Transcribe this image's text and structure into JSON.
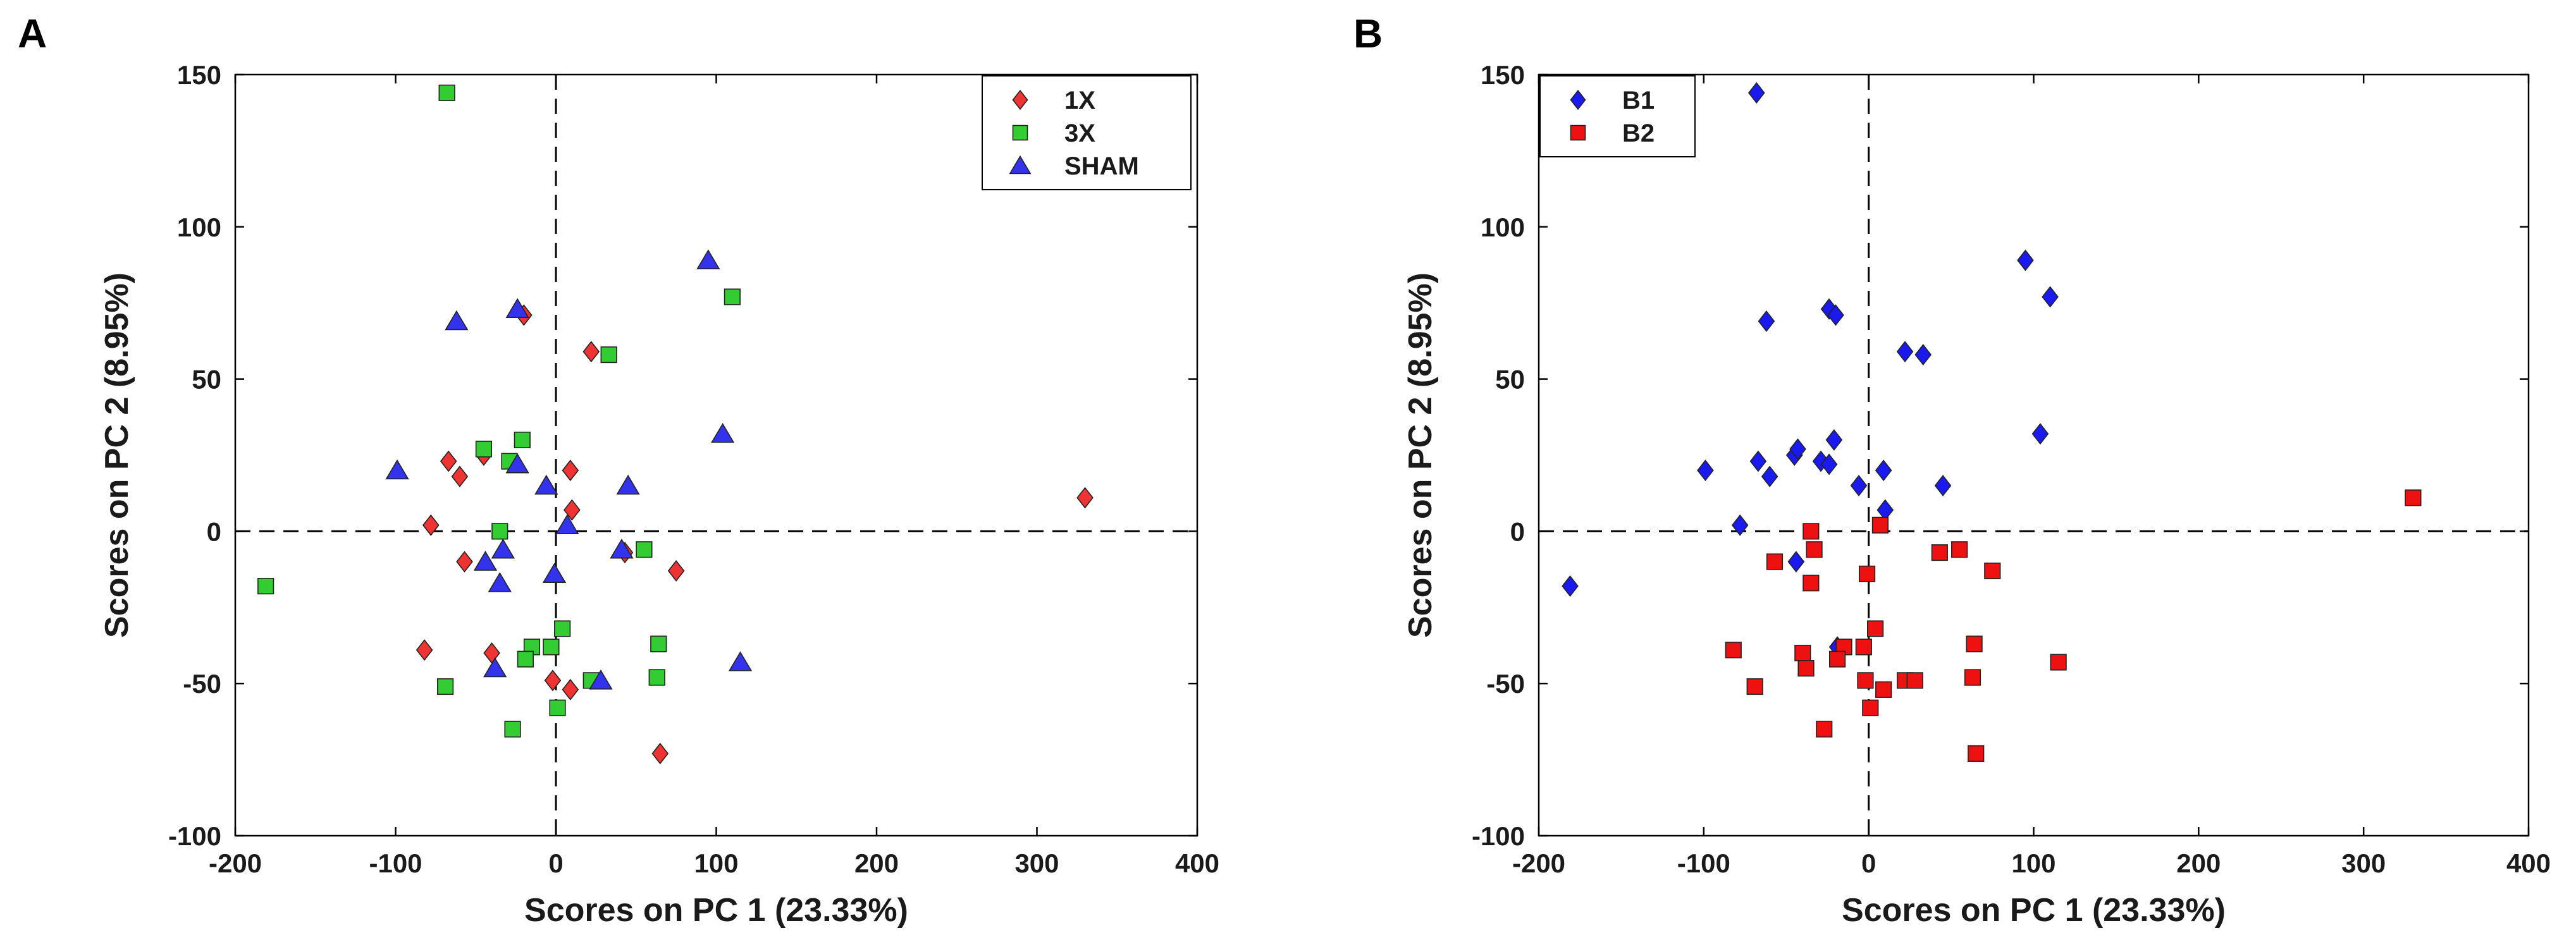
{
  "chart_data": [
    {
      "panel_label": "A",
      "type": "scatter",
      "xlabel": "Scores on PC 1 (23.33%)",
      "ylabel": "Scores on PC 2 (8.95%)",
      "xlim": [
        -200,
        400
      ],
      "ylim": [
        -100,
        150
      ],
      "xticks": [
        -200,
        -100,
        0,
        100,
        200,
        300,
        400
      ],
      "yticks": [
        -100,
        -50,
        0,
        50,
        100,
        150
      ],
      "grid": false,
      "reference_lines": {
        "x": 0,
        "y": 0,
        "style": "dashed"
      },
      "legend_position": "top-right",
      "series": [
        {
          "name": "1X",
          "marker": "diamond",
          "color": "#ee3333",
          "points": [
            [
              -20,
              71
            ],
            [
              22,
              59
            ],
            [
              -67,
              23
            ],
            [
              -60,
              18
            ],
            [
              -45,
              25
            ],
            [
              9,
              20
            ],
            [
              10,
              7
            ],
            [
              -78,
              2
            ],
            [
              -57,
              -10
            ],
            [
              43,
              -7
            ],
            [
              75,
              -13
            ],
            [
              -40,
              -40
            ],
            [
              -82,
              -39
            ],
            [
              -2,
              -49
            ],
            [
              9,
              -52
            ],
            [
              65,
              -73
            ],
            [
              330,
              11
            ]
          ]
        },
        {
          "name": "3X",
          "marker": "square",
          "color": "#33cc33",
          "points": [
            [
              -68,
              144
            ],
            [
              110,
              77
            ],
            [
              33,
              58
            ],
            [
              -45,
              27
            ],
            [
              -21,
              30
            ],
            [
              -29,
              23
            ],
            [
              -35,
              0
            ],
            [
              55,
              -6
            ],
            [
              -181,
              -18
            ],
            [
              64,
              -37
            ],
            [
              4,
              -32
            ],
            [
              -15,
              -38
            ],
            [
              -19,
              -42
            ],
            [
              -3,
              -38
            ],
            [
              22,
              -49
            ],
            [
              -69,
              -51
            ],
            [
              63,
              -48
            ],
            [
              1,
              -58
            ],
            [
              -27,
              -65
            ]
          ]
        },
        {
          "name": "SHAM",
          "marker": "triangle",
          "color": "#3333ee",
          "points": [
            [
              -62,
              69
            ],
            [
              -24,
              73
            ],
            [
              95,
              89
            ],
            [
              104,
              32
            ],
            [
              -99,
              20
            ],
            [
              -24,
              22
            ],
            [
              45,
              15
            ],
            [
              -6,
              15
            ],
            [
              7,
              2
            ],
            [
              41,
              -6
            ],
            [
              -33,
              -6
            ],
            [
              -44,
              -10
            ],
            [
              -35,
              -17
            ],
            [
              -1,
              -14
            ],
            [
              115,
              -43
            ],
            [
              28,
              -49
            ],
            [
              -38,
              -45
            ]
          ]
        }
      ]
    },
    {
      "panel_label": "B",
      "type": "scatter",
      "xlabel": "Scores on PC 1 (23.33%)",
      "ylabel": "Scores on PC 2 (8.95%)",
      "xlim": [
        -200,
        400
      ],
      "ylim": [
        -100,
        150
      ],
      "xticks": [
        -200,
        -100,
        0,
        100,
        200,
        300,
        400
      ],
      "yticks": [
        -100,
        -50,
        0,
        50,
        100,
        150
      ],
      "grid": false,
      "reference_lines": {
        "x": 0,
        "y": 0,
        "style": "dashed"
      },
      "legend_position": "top-left",
      "series": [
        {
          "name": "B1",
          "marker": "diamond",
          "color": "#1a1aee",
          "points": [
            [
              -68,
              144
            ],
            [
              95,
              89
            ],
            [
              110,
              77
            ],
            [
              -62,
              69
            ],
            [
              -24,
              73
            ],
            [
              -20,
              71
            ],
            [
              22,
              59
            ],
            [
              33,
              58
            ],
            [
              104,
              32
            ],
            [
              -99,
              20
            ],
            [
              -67,
              23
            ],
            [
              -60,
              18
            ],
            [
              -45,
              25
            ],
            [
              -43,
              27
            ],
            [
              -21,
              30
            ],
            [
              -29,
              23
            ],
            [
              -24,
              22
            ],
            [
              9,
              20
            ],
            [
              45,
              15
            ],
            [
              -6,
              15
            ],
            [
              10,
              7
            ],
            [
              -78,
              2
            ],
            [
              -44,
              -10
            ],
            [
              -181,
              -18
            ],
            [
              -19,
              -38
            ]
          ]
        },
        {
          "name": "B2",
          "marker": "square",
          "color": "#ee1111",
          "points": [
            [
              330,
              11
            ],
            [
              7,
              2
            ],
            [
              -35,
              0
            ],
            [
              55,
              -6
            ],
            [
              43,
              -7
            ],
            [
              -33,
              -6
            ],
            [
              -57,
              -10
            ],
            [
              75,
              -13
            ],
            [
              -1,
              -14
            ],
            [
              -35,
              -17
            ],
            [
              64,
              -37
            ],
            [
              4,
              -32
            ],
            [
              -82,
              -39
            ],
            [
              -40,
              -40
            ],
            [
              -38,
              -45
            ],
            [
              -15,
              -38
            ],
            [
              -19,
              -42
            ],
            [
              -3,
              -38
            ],
            [
              115,
              -43
            ],
            [
              -69,
              -51
            ],
            [
              -2,
              -49
            ],
            [
              9,
              -52
            ],
            [
              22,
              -49
            ],
            [
              28,
              -49
            ],
            [
              63,
              -48
            ],
            [
              1,
              -58
            ],
            [
              -27,
              -65
            ],
            [
              65,
              -73
            ]
          ]
        }
      ]
    }
  ]
}
